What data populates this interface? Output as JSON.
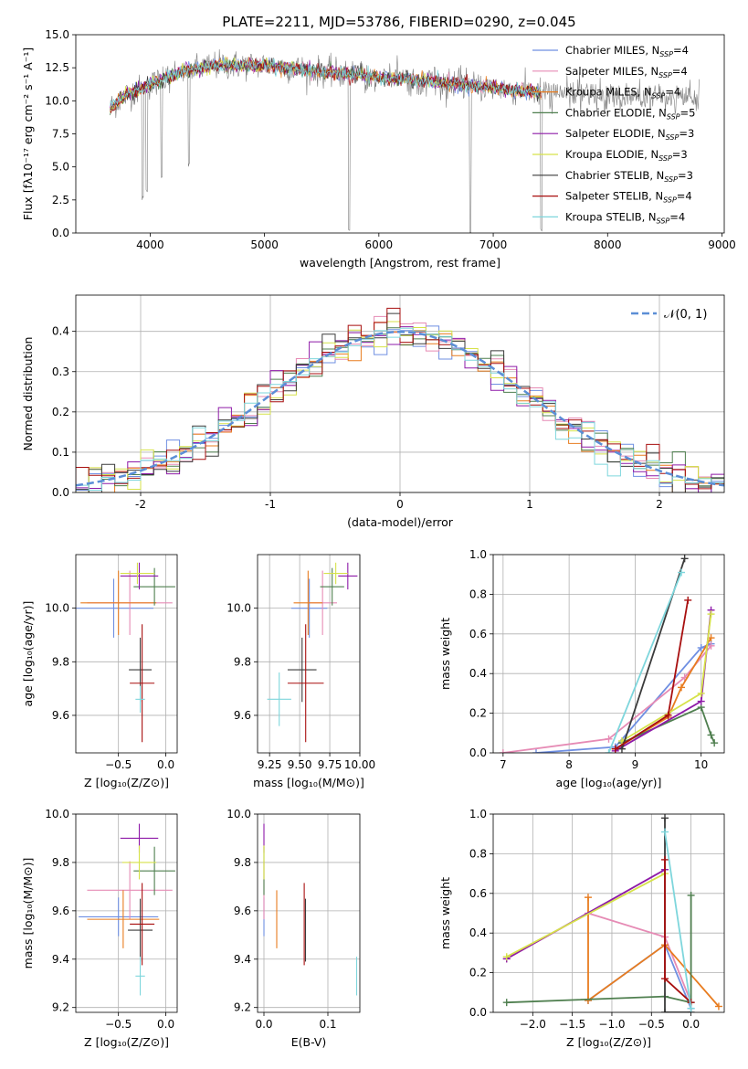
{
  "figure": {
    "title": "PLATE=2211, MJD=53786, FIBERID=0290, z=0.045",
    "background": "#ffffff"
  },
  "series_styles": [
    {
      "name": "Chabrier MILES",
      "nssp": "4",
      "color": "#6f8fe2"
    },
    {
      "name": "Salpeter MILES",
      "nssp": "4",
      "color": "#e68bb5"
    },
    {
      "name": "Kroupa MILES",
      "nssp": "4",
      "color": "#e87c1f"
    },
    {
      "name": "Chabrier ELODIE",
      "nssp": "5",
      "color": "#4f7f4f"
    },
    {
      "name": "Salpeter ELODIE",
      "nssp": "3",
      "color": "#8e1aa8"
    },
    {
      "name": "Kroupa ELODIE",
      "nssp": "3",
      "color": "#d6e24a"
    },
    {
      "name": "Chabrier STELIB",
      "nssp": "3",
      "color": "#3b3b3b"
    },
    {
      "name": "Salpeter STELIB",
      "nssp": "4",
      "color": "#a80f0f"
    },
    {
      "name": "Kroupa STELIB",
      "nssp": "4",
      "color": "#7ed6dc"
    }
  ],
  "nssp_label": "N",
  "nssp_sub": "SSP",
  "chart_data": [
    {
      "id": "spectrum",
      "type": "line",
      "xlabel": "wavelength [Angstrom, rest frame]",
      "ylabel": "Flux [fλ10⁻¹⁷ erg cm⁻² s⁻¹ A⁻¹]",
      "xlim": [
        3350,
        9020
      ],
      "ylim": [
        0,
        15
      ],
      "xticks": [
        4000,
        5000,
        6000,
        7000,
        8000,
        9000
      ],
      "yticks": [
        0.0,
        2.5,
        5.0,
        7.5,
        10.0,
        12.5,
        15.0
      ],
      "data_color": "#7f7f7f",
      "data_range": [
        3650,
        8800
      ],
      "model_range": [
        3650,
        7420
      ],
      "continuum": [
        [
          3650,
          9.5
        ],
        [
          3800,
          10.5
        ],
        [
          4000,
          11.2
        ],
        [
          4300,
          12.3
        ],
        [
          4600,
          12.7
        ],
        [
          5000,
          12.7
        ],
        [
          5500,
          12.2
        ],
        [
          6000,
          11.8
        ],
        [
          6500,
          11.4
        ],
        [
          7000,
          11.0
        ],
        [
          7420,
          10.6
        ],
        [
          8000,
          10.4
        ],
        [
          8800,
          10.1
        ]
      ],
      "dips": [
        [
          3935,
          2.5
        ],
        [
          3970,
          3.0
        ],
        [
          4340,
          5.0
        ],
        [
          4100,
          4.0
        ],
        [
          5740,
          0.0
        ],
        [
          6800,
          0.0
        ],
        [
          7420,
          0.0
        ]
      ],
      "grid": false
    },
    {
      "id": "histogram",
      "type": "bar",
      "xlabel": "(data-model)/error",
      "ylabel": "Normed distribution",
      "xlim": [
        -2.5,
        2.5
      ],
      "ylim": [
        0,
        0.49
      ],
      "xticks": [
        -2,
        -1,
        0,
        1,
        2
      ],
      "yticks": [
        0.0,
        0.1,
        0.2,
        0.3,
        0.4
      ],
      "bin_width": 0.1,
      "reference": {
        "label": "𝒩(0, 1)",
        "color": "#5b8ed6",
        "mu": 0,
        "sigma": 1
      },
      "grid": true
    },
    {
      "id": "age_vs_Z",
      "type": "scatter",
      "xlabel": "Z [log₁₀(Z/Z⊙)]",
      "ylabel": "age  [log₁₀(age/yr)]",
      "xlim": [
        -0.95,
        0.12
      ],
      "ylim": [
        9.46,
        10.2
      ],
      "xticks": [
        -0.5,
        0.0
      ],
      "xticklabels": [
        "−0.5",
        "0.0"
      ],
      "yticks": [
        9.6,
        9.8,
        10.0
      ],
      "points": [
        {
          "x": -0.55,
          "y": 10.0,
          "xerr": 0.42,
          "yerr": 0.11
        },
        {
          "x": -0.38,
          "y": 10.02,
          "xerr": 0.45,
          "yerr": 0.12
        },
        {
          "x": -0.5,
          "y": 10.02,
          "xerr": 0.4,
          "yerr": 0.12
        },
        {
          "x": -0.12,
          "y": 10.08,
          "xerr": 0.22,
          "yerr": 0.07
        },
        {
          "x": -0.28,
          "y": 10.12,
          "xerr": 0.2,
          "yerr": 0.05
        },
        {
          "x": -0.3,
          "y": 10.13,
          "xerr": 0.18,
          "yerr": 0.04
        },
        {
          "x": -0.27,
          "y": 9.77,
          "xerr": 0.12,
          "yerr": 0.12
        },
        {
          "x": -0.25,
          "y": 9.72,
          "xerr": 0.13,
          "yerr": 0.22
        },
        {
          "x": -0.27,
          "y": 9.66,
          "xerr": 0.05,
          "yerr": 0.05
        }
      ],
      "grid": true
    },
    {
      "id": "age_vs_mass",
      "type": "scatter",
      "xlabel": "mass [log₁₀(M/M⊙)]",
      "ylabel": "",
      "xlim": [
        9.15,
        10.0
      ],
      "ylim": [
        9.46,
        10.2
      ],
      "xticks": [
        9.25,
        9.5,
        9.75,
        10.0
      ],
      "xticklabels": [
        "9.25",
        "9.50",
        "9.75",
        "10.00"
      ],
      "yticks": [
        9.6,
        9.8,
        10.0
      ],
      "points": [
        {
          "x": 9.58,
          "y": 10.0,
          "xerr": 0.15,
          "yerr": 0.11
        },
        {
          "x": 9.69,
          "y": 10.02,
          "xerr": 0.12,
          "yerr": 0.12
        },
        {
          "x": 9.57,
          "y": 10.02,
          "xerr": 0.12,
          "yerr": 0.12
        },
        {
          "x": 9.77,
          "y": 10.08,
          "xerr": 0.1,
          "yerr": 0.07
        },
        {
          "x": 9.9,
          "y": 10.12,
          "xerr": 0.08,
          "yerr": 0.05
        },
        {
          "x": 9.8,
          "y": 10.13,
          "xerr": 0.1,
          "yerr": 0.04
        },
        {
          "x": 9.52,
          "y": 9.77,
          "xerr": 0.12,
          "yerr": 0.12
        },
        {
          "x": 9.55,
          "y": 9.72,
          "xerr": 0.15,
          "yerr": 0.22
        },
        {
          "x": 9.33,
          "y": 9.66,
          "xerr": 0.1,
          "yerr": 0.1
        }
      ],
      "grid": true
    },
    {
      "id": "weight_vs_age",
      "type": "line",
      "xlabel": "age  [log₁₀(age/yr)]",
      "ylabel": "mass weight",
      "xlim": [
        6.85,
        10.35
      ],
      "ylim": [
        0,
        1.0
      ],
      "xticks": [
        7,
        8,
        9,
        10
      ],
      "yticks": [
        0.0,
        0.2,
        0.4,
        0.6,
        0.8,
        1.0
      ],
      "series": [
        [
          [
            7.5,
            0.0
          ],
          [
            8.7,
            0.03
          ],
          [
            10.0,
            0.53
          ],
          [
            10.15,
            0.55
          ]
        ],
        [
          [
            7.0,
            0.0
          ],
          [
            8.6,
            0.07
          ],
          [
            9.75,
            0.38
          ],
          [
            10.15,
            0.54
          ]
        ],
        [
          [
            8.7,
            0.02
          ],
          [
            9.5,
            0.18
          ],
          [
            9.7,
            0.33
          ],
          [
            10.15,
            0.58
          ]
        ],
        [
          [
            8.8,
            0.05
          ],
          [
            10.0,
            0.23
          ],
          [
            10.15,
            0.09
          ],
          [
            10.2,
            0.05
          ]
        ],
        [
          [
            8.7,
            0.01
          ],
          [
            10.0,
            0.26
          ],
          [
            10.15,
            0.72
          ]
        ],
        [
          [
            8.8,
            0.06
          ],
          [
            10.0,
            0.3
          ],
          [
            10.15,
            0.7
          ]
        ],
        [
          [
            8.8,
            0.02
          ],
          [
            9.75,
            0.98
          ]
        ],
        [
          [
            8.7,
            0.02
          ],
          [
            9.5,
            0.19
          ],
          [
            9.8,
            0.77
          ]
        ],
        [
          [
            8.6,
            0.0
          ],
          [
            9.7,
            0.91
          ]
        ]
      ],
      "grid": true
    },
    {
      "id": "mass_vs_Z",
      "type": "scatter",
      "xlabel": "Z [log₁₀(Z/Z⊙)]",
      "ylabel": "mass [log₁₀(M/M⊙)]",
      "xlim": [
        -0.95,
        0.12
      ],
      "ylim": [
        9.18,
        10.0
      ],
      "xticks": [
        -0.5,
        0.0
      ],
      "xticklabels": [
        "−0.5",
        "0.0"
      ],
      "yticks": [
        9.2,
        9.4,
        9.6,
        9.8,
        10.0
      ],
      "points": [
        {
          "x": -0.5,
          "y": 9.575,
          "xerr": 0.42,
          "yerr": 0.08
        },
        {
          "x": -0.38,
          "y": 9.685,
          "xerr": 0.45,
          "yerr": 0.12
        },
        {
          "x": -0.45,
          "y": 9.565,
          "xerr": 0.38,
          "yerr": 0.12
        },
        {
          "x": -0.12,
          "y": 9.765,
          "xerr": 0.22,
          "yerr": 0.1
        },
        {
          "x": -0.28,
          "y": 9.9,
          "xerr": 0.2,
          "yerr": 0.06
        },
        {
          "x": -0.28,
          "y": 9.8,
          "xerr": 0.18,
          "yerr": 0.07
        },
        {
          "x": -0.27,
          "y": 9.52,
          "xerr": 0.13,
          "yerr": 0.13
        },
        {
          "x": -0.25,
          "y": 9.545,
          "xerr": 0.13,
          "yerr": 0.17
        },
        {
          "x": -0.27,
          "y": 9.33,
          "xerr": 0.05,
          "yerr": 0.08
        }
      ],
      "grid": true
    },
    {
      "id": "mass_vs_ebv",
      "type": "scatter",
      "xlabel": "E(B-V)",
      "ylabel": "",
      "xlim": [
        -0.01,
        0.15
      ],
      "ylim": [
        9.18,
        10.0
      ],
      "xticks": [
        0.0,
        0.1
      ],
      "xticklabels": [
        "0.0",
        "0.1"
      ],
      "yticks": [
        9.2,
        9.4,
        9.6,
        9.8,
        10.0
      ],
      "points": [
        {
          "x": 0.0,
          "y": 9.575,
          "xerr": 0,
          "yerr": 0.08
        },
        {
          "x": 0.0,
          "y": 9.685,
          "xerr": 0,
          "yerr": 0.12
        },
        {
          "x": 0.02,
          "y": 9.565,
          "xerr": 0,
          "yerr": 0.12
        },
        {
          "x": 0.0,
          "y": 9.765,
          "xerr": 0,
          "yerr": 0.1
        },
        {
          "x": 0.0,
          "y": 9.9,
          "xerr": 0,
          "yerr": 0.06
        },
        {
          "x": 0.0,
          "y": 9.8,
          "xerr": 0,
          "yerr": 0.07
        },
        {
          "x": 0.065,
          "y": 9.52,
          "xerr": 0,
          "yerr": 0.13
        },
        {
          "x": 0.063,
          "y": 9.545,
          "xerr": 0,
          "yerr": 0.17
        },
        {
          "x": 0.145,
          "y": 9.33,
          "xerr": 0,
          "yerr": 0.08
        }
      ],
      "grid": true
    },
    {
      "id": "weight_vs_Z",
      "type": "line",
      "xlabel": "Z [log₁₀(Z/Z⊙)]",
      "ylabel": "mass weight",
      "xlim": [
        -2.5,
        0.42
      ],
      "ylim": [
        0,
        1.0
      ],
      "xticks": [
        -2.0,
        -1.5,
        -1.0,
        -0.5,
        0.0
      ],
      "xticklabels": [
        "−2.0",
        "−1.5",
        "−1.0",
        "−0.5",
        "0.0"
      ],
      "yticks": [
        0.0,
        0.2,
        0.4,
        0.6,
        0.8,
        1.0
      ],
      "series": [
        [
          [
            -1.3,
            0.06
          ],
          [
            -0.33,
            0.34
          ],
          [
            0.0,
            0.02
          ]
        ],
        [
          [
            -2.33,
            0.27
          ],
          [
            -1.3,
            0.5
          ],
          [
            -0.33,
            0.38
          ],
          [
            0.0,
            0.05
          ]
        ],
        [
          [
            -1.3,
            0.58
          ],
          [
            -1.3,
            0.06
          ],
          [
            -0.33,
            0.34
          ],
          [
            0.35,
            0.03
          ]
        ],
        [
          [
            -2.33,
            0.05
          ],
          [
            -0.33,
            0.08
          ],
          [
            0.0,
            0.05
          ],
          [
            0.0,
            0.59
          ]
        ],
        [
          [
            -2.33,
            0.27
          ],
          [
            -0.33,
            0.72
          ]
        ],
        [
          [
            -2.33,
            0.28
          ],
          [
            -0.33,
            0.7
          ]
        ],
        [
          [
            -0.33,
            0.98
          ],
          [
            -0.33,
            0.0
          ],
          [
            0.0,
            0.0
          ]
        ],
        [
          [
            -0.33,
            0.77
          ],
          [
            -0.33,
            0.17
          ],
          [
            0.0,
            0.05
          ]
        ],
        [
          [
            -0.33,
            0.91
          ],
          [
            0.0,
            0.02
          ]
        ]
      ],
      "grid": true
    }
  ]
}
